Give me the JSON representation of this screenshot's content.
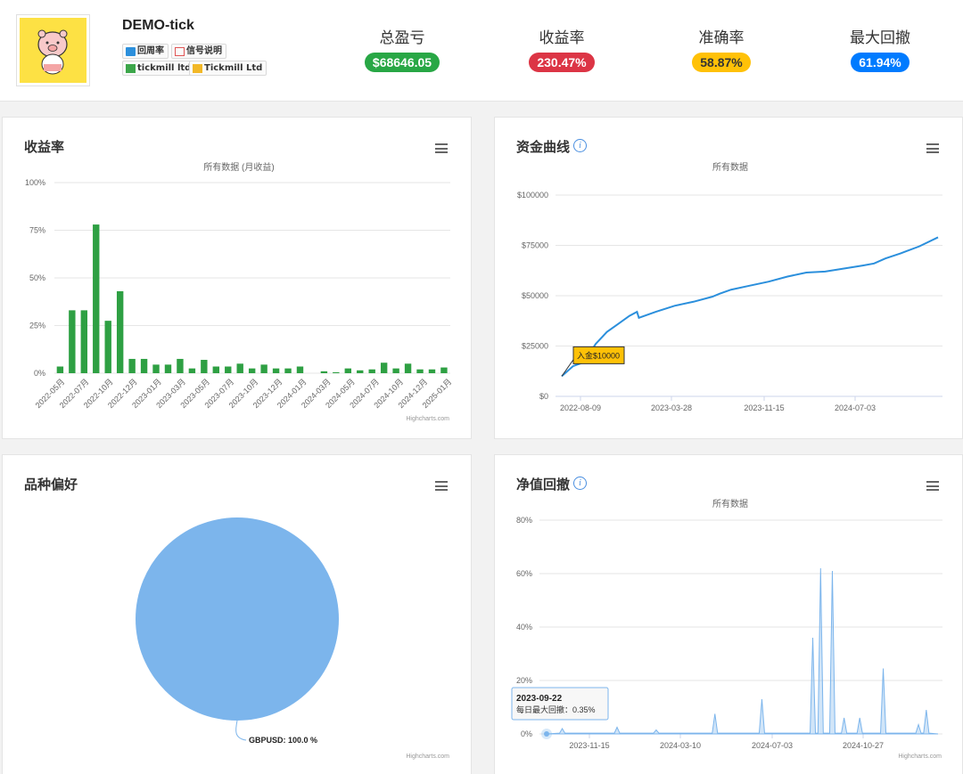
{
  "header": {
    "account_name": "DEMO-tick",
    "tags": [
      {
        "label": "回周率",
        "icon": "user-icon"
      },
      {
        "label": "信号说明",
        "icon": "document-icon"
      },
      {
        "label": "tickmill ltd",
        "icon": "broker-icon"
      },
      {
        "label": "Tickmill Ltd",
        "icon": "server-icon"
      }
    ],
    "stats": [
      {
        "label": "总盈亏",
        "value": "$68646.05",
        "color": "#28a745"
      },
      {
        "label": "收益率",
        "value": "230.47%",
        "color": "#dc3545"
      },
      {
        "label": "准确率",
        "value": "58.87%",
        "color": "#ffc107"
      },
      {
        "label": "最大回撤",
        "value": "61.94%",
        "color": "#007bff"
      }
    ]
  },
  "panels": {
    "returns": {
      "title": "收益率"
    },
    "equity": {
      "title": "资金曲线"
    },
    "symbols": {
      "title": "品种偏好"
    },
    "drawdown": {
      "title": "净值回撤"
    }
  },
  "chart_data": [
    {
      "type": "bar",
      "subtitle": "所有数据 (月收益)",
      "credit": "Highcharts.com",
      "ylim": [
        0,
        100
      ],
      "y_ticks": [
        "0%",
        "25%",
        "50%",
        "75%",
        "100%"
      ],
      "x_tick_labels": [
        "2022-05月",
        "2022-07月",
        "2022-10月",
        "2022-12月",
        "2023-01月",
        "2023-03月",
        "2023-05月",
        "2023-07月",
        "2023-10月",
        "2023-12月",
        "2024-01月",
        "2024-03月",
        "2024-05月",
        "2024-07月",
        "2024-10月",
        "2024-12月",
        "2025-01月"
      ],
      "values": [
        3.5,
        33,
        33,
        78,
        27.5,
        43,
        7.5,
        7.5,
        4.5,
        4.5,
        7.5,
        2.5,
        7,
        3.5,
        3.5,
        5,
        2.5,
        4.5,
        2.5,
        2.5,
        3.5,
        0,
        1,
        0.5,
        2.5,
        1.5,
        2,
        5.5,
        2.5,
        5,
        2,
        2,
        3
      ],
      "color": "#2ea043"
    },
    {
      "type": "line",
      "subtitle": "所有数据",
      "y_ticks": [
        "$0",
        "$25000",
        "$50000",
        "$75000",
        "$100000"
      ],
      "ylim": [
        0,
        100000
      ],
      "x_ticks": [
        "2022-08-09",
        "2023-03-28",
        "2023-11-15",
        "2024-07-03"
      ],
      "series": [
        {
          "points": [
            [
              0,
              10000
            ],
            [
              0.03,
              15000
            ],
            [
              0.06,
              17000
            ],
            [
              0.09,
              26000
            ],
            [
              0.12,
              32000
            ],
            [
              0.15,
              36000
            ],
            [
              0.18,
              40000
            ],
            [
              0.2,
              42000
            ],
            [
              0.205,
              39000
            ],
            [
              0.25,
              42000
            ],
            [
              0.3,
              45000
            ],
            [
              0.35,
              47000
            ],
            [
              0.4,
              49500
            ],
            [
              0.42,
              51000
            ],
            [
              0.45,
              53000
            ],
            [
              0.5,
              55000
            ],
            [
              0.55,
              57000
            ],
            [
              0.6,
              59500
            ],
            [
              0.65,
              61500
            ],
            [
              0.7,
              62000
            ],
            [
              0.75,
              63500
            ],
            [
              0.8,
              65000
            ],
            [
              0.83,
              66000
            ],
            [
              0.86,
              68500
            ],
            [
              0.9,
              71000
            ],
            [
              0.95,
              74500
            ],
            [
              1,
              79000
            ]
          ],
          "color": "#2b8fdc"
        }
      ],
      "annotation": "入金$10000"
    },
    {
      "type": "pie",
      "slices": [
        {
          "label": "GBPUSD: 100.0 %",
          "value": 100,
          "color": "#7cb5ec"
        }
      ],
      "credit": "Highcharts.com"
    },
    {
      "type": "area",
      "subtitle": "所有数据",
      "y_ticks": [
        "0%",
        "20%",
        "40%",
        "60%",
        "80%"
      ],
      "ylim": [
        0,
        80
      ],
      "x_ticks": [
        "2023-11-15",
        "2024-03-10",
        "2024-07-03",
        "2024-10-27"
      ],
      "spikes": [
        [
          0.04,
          2
        ],
        [
          0.18,
          2.5
        ],
        [
          0.28,
          1.5
        ],
        [
          0.43,
          7.5
        ],
        [
          0.55,
          13
        ],
        [
          0.68,
          36
        ],
        [
          0.7,
          62
        ],
        [
          0.73,
          61
        ],
        [
          0.76,
          6
        ],
        [
          0.8,
          6
        ],
        [
          0.86,
          24.5
        ],
        [
          0.95,
          3.5
        ],
        [
          0.97,
          9
        ]
      ],
      "tooltip": {
        "date": "2023-09-22",
        "label": "每日最大回撤：",
        "value": "0.35%"
      },
      "credit": "Highcharts.com"
    }
  ]
}
